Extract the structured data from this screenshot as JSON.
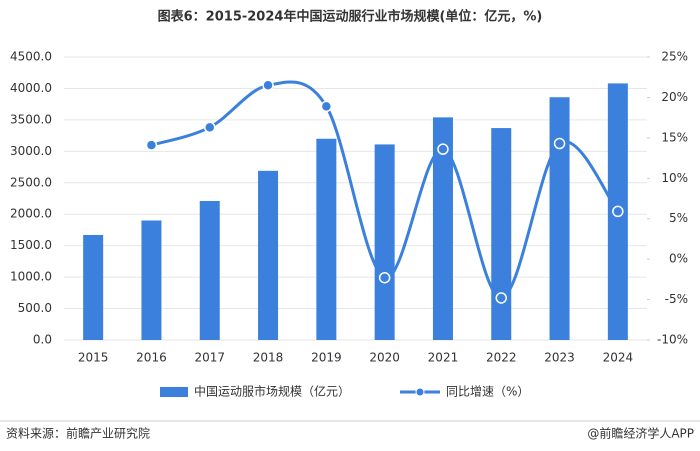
{
  "chart_data": {
    "type": "bar_line",
    "title": "图表6：2015-2024年中国运动服行业市场规模(单位：亿元，%)",
    "categories": [
      "2015",
      "2016",
      "2017",
      "2018",
      "2019",
      "2020",
      "2021",
      "2022",
      "2023",
      "2024"
    ],
    "series": [
      {
        "name": "中国运动服市场规模（亿元）",
        "type": "bar",
        "color": "#3a80dc",
        "values": [
          1670,
          1900,
          2210,
          2690,
          3200,
          3110,
          3540,
          3370,
          3860,
          4080
        ]
      },
      {
        "name": "同比增速（%）",
        "type": "line",
        "axis": "y2",
        "color": "#3a80dc",
        "values": [
          null,
          14.1,
          16.3,
          21.5,
          18.9,
          -2.3,
          13.6,
          -4.8,
          14.3,
          5.9
        ]
      }
    ],
    "ylim": [
      0,
      4500
    ],
    "yticks": [
      {
        "value": 0,
        "label": "0.0"
      },
      {
        "value": 500,
        "label": "500.0"
      },
      {
        "value": 1000,
        "label": "1000.0"
      },
      {
        "value": 1500,
        "label": "1500.0"
      },
      {
        "value": 2000,
        "label": "2000.0"
      },
      {
        "value": 2500,
        "label": "2500.0"
      },
      {
        "value": 3000,
        "label": "3000.0"
      },
      {
        "value": 3500,
        "label": "3500.0"
      },
      {
        "value": 4000,
        "label": "4000.0"
      },
      {
        "value": 4500,
        "label": "4500.0"
      }
    ],
    "y2lim": [
      -10,
      25
    ],
    "y2ticks": [
      {
        "value": -10,
        "label": "-10%"
      },
      {
        "value": -5,
        "label": "-5%"
      },
      {
        "value": 0,
        "label": "0%"
      },
      {
        "value": 5,
        "label": "5%"
      },
      {
        "value": 10,
        "label": "10%"
      },
      {
        "value": 15,
        "label": "15%"
      },
      {
        "value": 20,
        "label": "20%"
      },
      {
        "value": 25,
        "label": "25%"
      }
    ],
    "grid": true,
    "legend": "bottom",
    "source": "资料来源：前瞻产业研究院",
    "brand": "@前瞻经济学人APP"
  }
}
